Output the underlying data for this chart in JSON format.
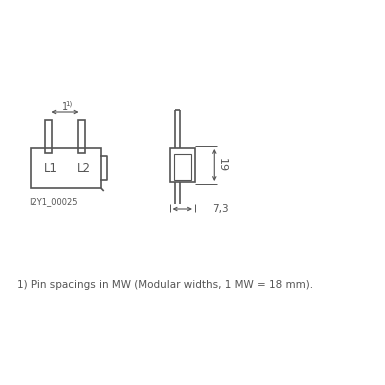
{
  "bg_color": "#ffffff",
  "line_color": "#555555",
  "text_color": "#555555",
  "fig_width": 3.85,
  "fig_height": 3.85,
  "footnote": "1) Pin spacings in MW (Modular widths, 1 MW = 18 mm).",
  "label_L1": "L1",
  "label_L2": "L2",
  "image_code": "I2Y1_00025",
  "dim_19": "19",
  "dim_73": "7,3",
  "dim_1mw": "1"
}
